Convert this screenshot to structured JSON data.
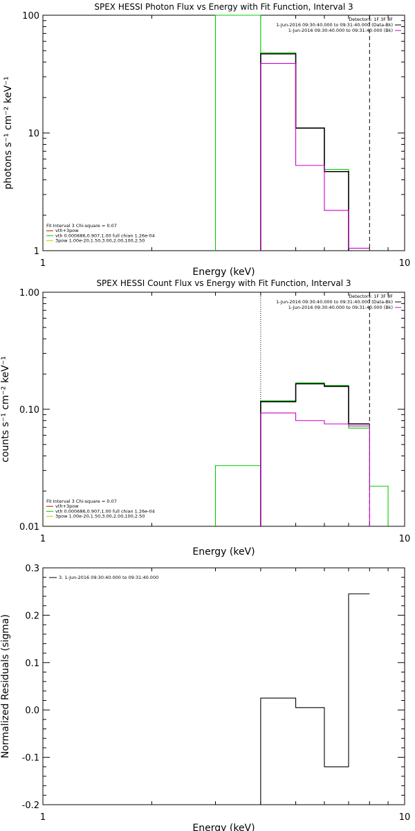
{
  "colors": {
    "background": "#ffffff",
    "axes": "#000000",
    "bk_sub": "#000000",
    "bk": "#cc00cc",
    "vth_4pow": "#cc0000",
    "vth": "#00cc00",
    "pow": "#cccc00"
  },
  "chart_data": [
    {
      "type": "line",
      "title": "SPEX HESSI Photon Flux vs Energy with Fit Function, Interval 3",
      "xlabel": "Energy (keV)",
      "ylabel": "photons s⁻¹ cm⁻² keV⁻¹",
      "xscale": "log",
      "yscale": "log",
      "xlim": [
        1,
        10
      ],
      "ylim": [
        1,
        100
      ],
      "xticks": [
        {
          "v": 1,
          "label": "1"
        },
        {
          "v": 10,
          "label": "10"
        }
      ],
      "yticks": [
        {
          "v": 1,
          "label": "1"
        },
        {
          "v": 10,
          "label": "10"
        },
        {
          "v": 100,
          "label": "100"
        }
      ],
      "info_right": [
        {
          "text": "Detectors: 1F 3F 8F",
          "color": "#000000"
        },
        {
          "text": "1-Jun-2016 09:30:40.000 to 09:31:40.000 (Data-Bk)",
          "color": "#000000"
        },
        {
          "text": "1-Jun-2016 09:30:40.000 to 09:31:40.000 (Bk)",
          "color": "#cc00cc"
        }
      ],
      "info_left": [
        {
          "text": "Fit Interval 3   Chi-square = 0.07",
          "color": "#000000"
        },
        {
          "text": "vth+3pow",
          "color": "#cc0000"
        },
        {
          "text": "vth 0.000686,0.907,1.00  full chian 1.26e-04",
          "color": "#00cc00"
        },
        {
          "text": "3pow 1.00e-20,1.50,3.00,2.00,100,2.50",
          "color": "#cccc00"
        }
      ],
      "vlines": [
        {
          "x": 4.0,
          "style": "dotted",
          "color": "#00cc00"
        },
        {
          "x": 8.0,
          "style": "dashed",
          "color": "#000000"
        }
      ],
      "series": [
        {
          "color": "#00cc00",
          "edges": [
            3.0,
            4.0,
            5.0,
            6.0,
            7.0
          ],
          "values": [
            100,
            48,
            11,
            4.9,
            1.03
          ],
          "drop_last": false
        },
        {
          "color": "#000000",
          "edges": [
            4.0,
            5.0,
            6.0,
            7.0
          ],
          "values": [
            47,
            11,
            4.7,
            1.0
          ],
          "drop_last": false
        },
        {
          "color": "#cc00cc",
          "edges": [
            4.0,
            5.0,
            6.0,
            7.0,
            8.0
          ],
          "values": [
            39,
            5.3,
            2.2,
            1.05
          ],
          "drop_last": false
        }
      ]
    },
    {
      "type": "line",
      "title": "SPEX HESSI Count Flux vs Energy with Fit Function, Interval 3",
      "xlabel": "Energy (keV)",
      "ylabel": "counts s⁻¹ cm⁻² keV⁻¹",
      "xscale": "log",
      "yscale": "log",
      "xlim": [
        1,
        10
      ],
      "ylim": [
        0.01,
        1.0
      ],
      "xticks": [
        {
          "v": 1,
          "label": "1"
        },
        {
          "v": 10,
          "label": "10"
        }
      ],
      "yticks": [
        {
          "v": 0.01,
          "label": "0.01"
        },
        {
          "v": 0.1,
          "label": "0.10"
        },
        {
          "v": 1.0,
          "label": "1.00"
        }
      ],
      "info_right": [
        {
          "text": "Detectors: 1F 3F 8F",
          "color": "#000000"
        },
        {
          "text": "1-Jun-2016 09:30:40.000 to 09:31:40.000 (Data-Bk)",
          "color": "#000000"
        },
        {
          "text": "1-Jun-2016 09:30:40.000 to 09:31:40.000 (Bk)",
          "color": "#cc00cc"
        }
      ],
      "info_left": [
        {
          "text": "Fit Interval 3   Chi-square = 0.07",
          "color": "#000000"
        },
        {
          "text": "vth+3pow",
          "color": "#cc0000"
        },
        {
          "text": "vth 0.000686,0.907,1.00  full chian 1.26e-04",
          "color": "#00cc00"
        },
        {
          "text": "3pow 1.00e-20,1.50,3.00,2.00,100,2.50",
          "color": "#cccc00"
        }
      ],
      "vlines": [
        {
          "x": 4.0,
          "style": "dotted",
          "color": "#000000"
        },
        {
          "x": 8.0,
          "style": "dashed",
          "color": "#000000"
        }
      ],
      "series": [
        {
          "color": "#00cc00",
          "edges": [
            3.0,
            4.0,
            5.0,
            6.0,
            7.0,
            8.0,
            9.0
          ],
          "values": [
            0.033,
            0.118,
            0.168,
            0.16,
            0.069,
            0.022
          ],
          "drop_last": true
        },
        {
          "color": "#000000",
          "edges": [
            4.0,
            5.0,
            6.0,
            7.0,
            8.0
          ],
          "values": [
            0.116,
            0.165,
            0.157,
            0.075
          ],
          "drop_last": false
        },
        {
          "color": "#cc00cc",
          "edges": [
            4.0,
            5.0,
            6.0,
            7.0,
            8.0
          ],
          "values": [
            0.093,
            0.08,
            0.075,
            0.072
          ],
          "drop_last": true
        }
      ]
    },
    {
      "type": "line",
      "title": "",
      "xlabel": "Energy (keV)",
      "ylabel": "Normalized Residuals (sigma)",
      "xscale": "log",
      "yscale": "linear",
      "xlim": [
        1,
        10
      ],
      "ylim": [
        -0.2,
        0.3
      ],
      "xticks": [
        {
          "v": 1,
          "label": "1"
        },
        {
          "v": 10,
          "label": "10"
        }
      ],
      "yticks": [
        {
          "v": -0.2,
          "label": "-0.2"
        },
        {
          "v": -0.1,
          "label": "-0.1"
        },
        {
          "v": 0.0,
          "label": "0.0"
        },
        {
          "v": 0.1,
          "label": "0.1"
        },
        {
          "v": 0.2,
          "label": "0.2"
        },
        {
          "v": 0.3,
          "label": "0.3"
        }
      ],
      "legend": [
        {
          "text": "3.  1-Jun-2016 09:30:40.000 to 09:31:40.000",
          "color": "#000000"
        }
      ],
      "series": [
        {
          "color": "#000000",
          "edges": [
            4.0,
            5.0,
            6.0,
            7.0,
            8.0
          ],
          "values": [
            0.025,
            0.005,
            -0.12,
            0.245
          ]
        }
      ]
    }
  ]
}
